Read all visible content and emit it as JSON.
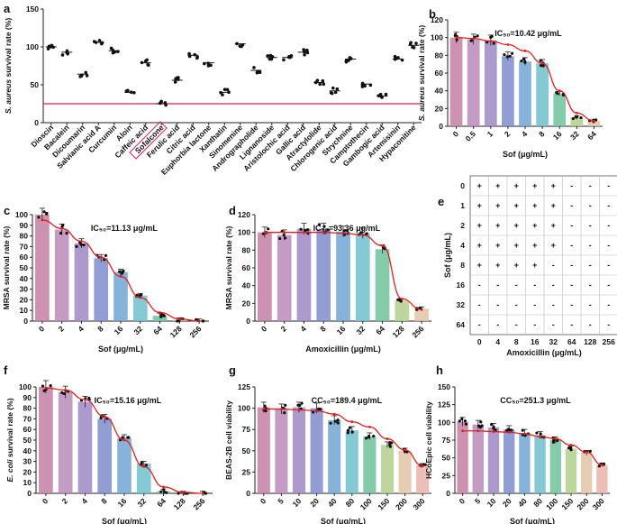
{
  "chart_data": [
    {
      "panel": "a",
      "type": "scatter",
      "ylabel": "S. aureus survival rate (%)",
      "ylim": [
        0,
        150
      ],
      "yticks": [
        0,
        50,
        100,
        150
      ],
      "reference_line": 25,
      "highlight": "Sofalcone",
      "categories": [
        "Dioscin",
        "Bacalein",
        "Dicoumarin",
        "Salvianic acid A",
        "Curcumin",
        "Aloin",
        "Caffeic acid",
        "Sofalcone",
        "Ferulic acid",
        "Citric acid",
        "Euphorbia lactone",
        "Xanthatin",
        "Sinomenine",
        "Andrographolide",
        "Lignanoside",
        "Aristolochic acid",
        "Gallic acid",
        "Atractylolide",
        "Chlorogenic acid",
        "Strychnine",
        "Camptothecin",
        "Gambogic acid",
        "Artemisinin",
        "Hypaconitine"
      ],
      "values": [
        100,
        93,
        64,
        106,
        95,
        40,
        79,
        25,
        56,
        89,
        79,
        40,
        104,
        69,
        86,
        86,
        93,
        53,
        42,
        84,
        51,
        35,
        84,
        102
      ]
    },
    {
      "panel": "b",
      "type": "bar",
      "title": "IC₅₀=10.42 μg/mL",
      "xlabel": "Sof (μg/mL)",
      "ylabel": "S. aureus survival rate (%)",
      "ylim": [
        0,
        120
      ],
      "yticks": [
        0,
        20,
        40,
        60,
        80,
        100,
        120
      ],
      "categories": [
        "0",
        "0.5",
        "1",
        "2",
        "4",
        "8",
        "16",
        "32",
        "64"
      ],
      "values": [
        100,
        98,
        97,
        79,
        73,
        71,
        37,
        10,
        6
      ],
      "fit": [
        100,
        99,
        96,
        92,
        85,
        71,
        40,
        15,
        6
      ]
    },
    {
      "panel": "c",
      "type": "bar",
      "title": "IC₅₀=11.13 μg/mL",
      "xlabel": "Sof (μg/mL)",
      "ylabel": "MRSA survival rate (%)",
      "ylim": [
        0,
        100
      ],
      "yticks": [
        0,
        10,
        20,
        30,
        40,
        50,
        60,
        70,
        80,
        90,
        100
      ],
      "categories": [
        "0",
        "2",
        "4",
        "8",
        "16",
        "32",
        "64",
        "128",
        "256"
      ],
      "values": [
        100,
        86,
        73,
        59,
        46,
        24,
        5,
        1,
        0
      ],
      "fit": [
        95,
        87,
        75,
        60,
        42,
        22,
        8,
        2,
        0
      ]
    },
    {
      "panel": "d",
      "type": "bar",
      "title": "IC₅₀=93.36 μg/mL",
      "xlabel": "Amoxicillin (μg/mL)",
      "ylabel": "MRSA survival rate (%)",
      "ylim": [
        0,
        120
      ],
      "yticks": [
        0,
        20,
        40,
        60,
        80,
        100,
        120
      ],
      "categories": [
        "0",
        "2",
        "4",
        "8",
        "16",
        "32",
        "64",
        "128",
        "256"
      ],
      "values": [
        100,
        97,
        104,
        104,
        101,
        99,
        81,
        23,
        14
      ],
      "fit": [
        100,
        100,
        100,
        100,
        99,
        97,
        85,
        25,
        13
      ]
    },
    {
      "panel": "e",
      "type": "table",
      "xlabel": "Amoxicillin (μg/mL)",
      "ylabel": "Sof (μg/mL)",
      "columns": [
        "0",
        "4",
        "8",
        "16",
        "32",
        "64",
        "128",
        "256"
      ],
      "rows": [
        "0",
        "1",
        "2",
        "4",
        "8",
        "16",
        "32",
        "64"
      ],
      "cells": [
        [
          "+",
          "+",
          "+",
          "+",
          "+",
          "-",
          "-",
          "-"
        ],
        [
          "+",
          "+",
          "+",
          "+",
          "+",
          "-",
          "-",
          "-"
        ],
        [
          "+",
          "+",
          "+",
          "+",
          "+",
          "-",
          "-",
          "-"
        ],
        [
          "+",
          "+",
          "+",
          "+",
          "+",
          "-",
          "-",
          "-"
        ],
        [
          "+",
          "+",
          "+",
          "+",
          "-",
          "-",
          "-",
          "-"
        ],
        [
          "-",
          "-",
          "-",
          "-",
          "-",
          "-",
          "-",
          "-"
        ],
        [
          "-",
          "-",
          "-",
          "-",
          "-",
          "-",
          "-",
          "-"
        ],
        [
          "-",
          "-",
          "-",
          "-",
          "-",
          "-",
          "-",
          "-"
        ]
      ]
    },
    {
      "panel": "f",
      "type": "bar",
      "title": "IC₅₀=15.16 μg/mL",
      "xlabel": "Sof (μg/mL)",
      "ylabel": "E. coli survival rate (%)",
      "ylim": [
        0,
        100
      ],
      "yticks": [
        0,
        10,
        20,
        30,
        40,
        50,
        60,
        70,
        80,
        90,
        100
      ],
      "categories": [
        "0",
        "2",
        "4",
        "8",
        "16",
        "32",
        "64",
        "128",
        "256"
      ],
      "values": [
        100,
        95,
        86,
        70,
        52,
        28,
        2,
        0,
        0
      ],
      "fit": [
        99,
        97,
        88,
        72,
        50,
        25,
        6,
        1,
        0
      ]
    },
    {
      "panel": "g",
      "type": "bar",
      "title": "CC₅₀=189.4 μg/mL",
      "xlabel": "Sof (μg/mL)",
      "ylabel": "BEAS-2B cell viability",
      "ylim": [
        0,
        125
      ],
      "yticks": [
        0,
        25,
        50,
        75,
        100,
        125
      ],
      "categories": [
        "0",
        "5",
        "10",
        "20",
        "40",
        "80",
        "100",
        "150",
        "200",
        "300"
      ],
      "values": [
        101,
        99,
        101,
        100,
        86,
        74,
        67,
        57,
        50,
        33
      ],
      "fit": [
        99,
        99,
        98,
        97,
        93,
        84,
        78,
        64,
        51,
        32
      ]
    },
    {
      "panel": "h",
      "type": "bar",
      "title": "CC₅₀=251.3 μg/mL",
      "xlabel": "Sof (μg/mL)",
      "ylabel": "HCoEpic cell viability",
      "ylim": [
        0,
        150
      ],
      "yticks": [
        0,
        25,
        50,
        75,
        100,
        125,
        150
      ],
      "categories": [
        "0",
        "5",
        "10",
        "20",
        "40",
        "80",
        "100",
        "150",
        "200",
        "300"
      ],
      "values": [
        101,
        97,
        93,
        90,
        85,
        82,
        75,
        63,
        57,
        40
      ],
      "fit": [
        88,
        88,
        87,
        86,
        84,
        80,
        77,
        68,
        58,
        40
      ]
    }
  ],
  "colors": {
    "bars": [
      "#c47fa2",
      "#b98ab8",
      "#9d88c3",
      "#7f8ccc",
      "#72a4d4",
      "#6fbfcc",
      "#6ec29d",
      "#b1cf8f",
      "#e2c3a5",
      "#e8b3ac"
    ],
    "fit": "#e02020",
    "reference": "#d81b60",
    "dot": "#111111"
  }
}
